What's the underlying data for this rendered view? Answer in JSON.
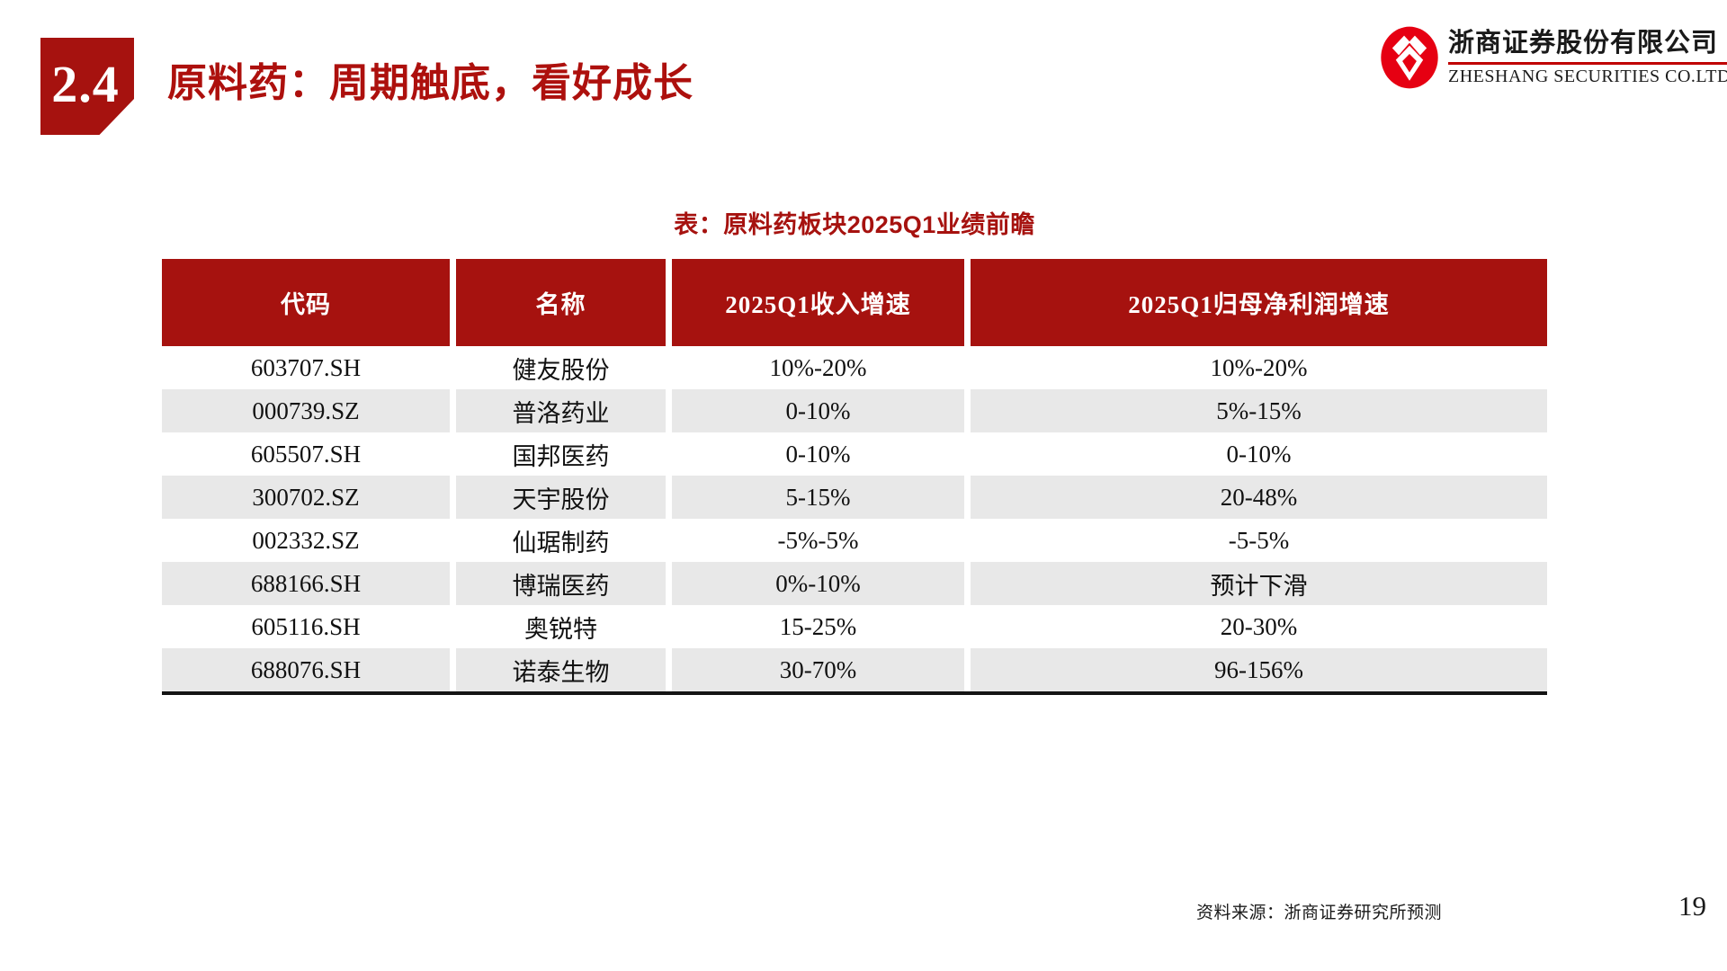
{
  "slide": {
    "section_number": "2.4",
    "title": "原料药：周期触底，看好成长",
    "source": "资料来源：浙商证券研究所预测",
    "page_number": "19"
  },
  "logo": {
    "mark_icon": "zheshang-double-diamond-mark",
    "company_cn": "浙商证券股份有限公司",
    "company_en": "ZHESHANG SECURITIES CO.LTD"
  },
  "table": {
    "caption": "表：原料药板块2025Q1业绩前瞻",
    "columns": [
      "代码",
      "名称",
      "2025Q1收入增速",
      "2025Q1归母净利润增速"
    ],
    "rows": [
      [
        "603707.SH",
        "健友股份",
        "10%-20%",
        "10%-20%"
      ],
      [
        "000739.SZ",
        "普洛药业",
        "0-10%",
        "5%-15%"
      ],
      [
        "605507.SH",
        "国邦医药",
        "0-10%",
        "0-10%"
      ],
      [
        "300702.SZ",
        "天宇股份",
        "5-15%",
        "20-48%"
      ],
      [
        "002332.SZ",
        "仙琚制药",
        "-5%-5%",
        "-5-5%"
      ],
      [
        "688166.SH",
        "博瑞医药",
        "0%-10%",
        "预计下滑"
      ],
      [
        "605116.SH",
        "奥锐特",
        "15-25%",
        "20-30%"
      ],
      [
        "688076.SH",
        "诺泰生物",
        "30-70%",
        "96-156%"
      ]
    ]
  },
  "colors": {
    "brand_red": "#A6120F",
    "title_red": "#AD100D",
    "logo_red": "#E60012",
    "underline_red": "#C00000",
    "row_gray": "#E8E8E8",
    "table_bottom_line": "#141414"
  }
}
